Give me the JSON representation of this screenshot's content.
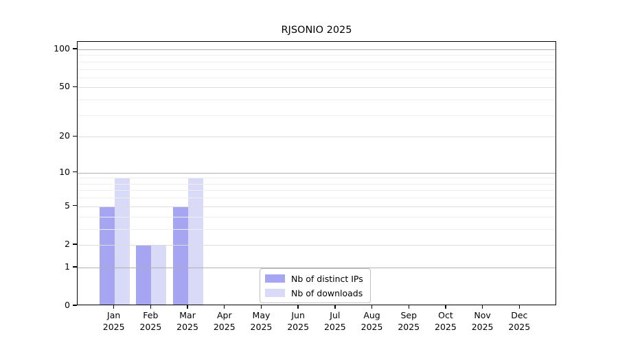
{
  "title": "RJSONIO 2025",
  "chart_data": {
    "type": "bar",
    "title": "RJSONIO 2025",
    "categories": [
      "Jan",
      "Feb",
      "Mar",
      "Apr",
      "May",
      "Jun",
      "Jul",
      "Aug",
      "Sep",
      "Oct",
      "Nov",
      "Dec"
    ],
    "year_label": "2025",
    "series": [
      {
        "name": "Nb of distinct IPs",
        "color": "#a5a5f2",
        "values": [
          5,
          2,
          5,
          0,
          0,
          0,
          0,
          0,
          0,
          0,
          0,
          0
        ]
      },
      {
        "name": "Nb of downloads",
        "color": "#d9d9f8",
        "values": [
          9,
          2,
          9,
          0,
          0,
          0,
          0,
          0,
          0,
          0,
          0,
          0
        ]
      }
    ],
    "y_scale": "log1p",
    "ylim": [
      0,
      100
    ],
    "y_ticks": [
      0,
      1,
      2,
      5,
      10,
      20,
      50,
      100
    ],
    "y_minor_gridlines": [
      3,
      4,
      6,
      7,
      8,
      9,
      30,
      40,
      60,
      70,
      80,
      90
    ],
    "grid": "horizontal",
    "legend_position": "lower-center-inside",
    "colors": {
      "axis": "#000000",
      "gridline_strong": "#b0b0b0",
      "gridline_major": "#dcdcdc",
      "gridline_minor": "#efefef"
    }
  }
}
